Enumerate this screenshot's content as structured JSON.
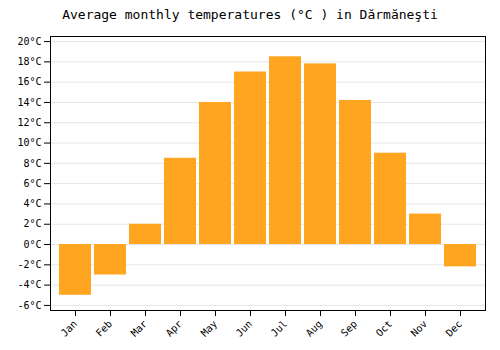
{
  "chart_data": {
    "type": "bar",
    "title": "Average monthly temperatures (°C ) in Dărmăneşti",
    "categories": [
      "Jan",
      "Feb",
      "Mar",
      "Apr",
      "May",
      "Jun",
      "Jul",
      "Aug",
      "Sep",
      "Oct",
      "Nov",
      "Dec"
    ],
    "values": [
      -5.0,
      -3.0,
      2.0,
      8.5,
      14.0,
      17.0,
      18.5,
      17.8,
      14.2,
      9.0,
      3.0,
      -2.2
    ],
    "color": "#FFA520",
    "ylim": [
      -6.5,
      20.5
    ],
    "yticks": [
      {
        "value": -6,
        "label": "-6°C"
      },
      {
        "value": -4,
        "label": "-4°C"
      },
      {
        "value": -2,
        "label": "-2°C"
      },
      {
        "value": 0,
        "label": "0°C"
      },
      {
        "value": 2,
        "label": "2°C"
      },
      {
        "value": 4,
        "label": "4°C"
      },
      {
        "value": 6,
        "label": "6°C"
      },
      {
        "value": 8,
        "label": "8°C"
      },
      {
        "value": 10,
        "label": "10°C"
      },
      {
        "value": 12,
        "label": "12°C"
      },
      {
        "value": 14,
        "label": "14°C"
      },
      {
        "value": 16,
        "label": "16°C"
      },
      {
        "value": 18,
        "label": "18°C"
      },
      {
        "value": 20,
        "label": "20°C"
      }
    ],
    "grid": true
  }
}
